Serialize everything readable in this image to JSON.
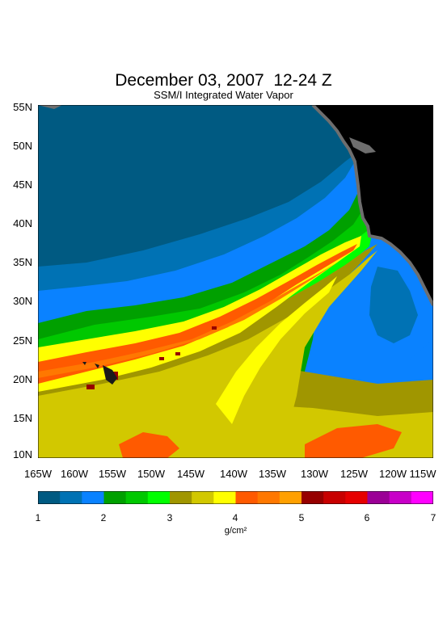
{
  "title": "December 03, 2007  12-24 Z",
  "subtitle": "SSM/I Integrated Water Vapor",
  "latitude_ticks": [
    "55N",
    "50N",
    "45N",
    "40N",
    "35N",
    "30N",
    "25N",
    "20N",
    "15N",
    "10N"
  ],
  "longitude_ticks": [
    "165W",
    "160W",
    "155W",
    "150W",
    "145W",
    "140W",
    "135W",
    "130W",
    "125W",
    "120W",
    "115W"
  ],
  "colorbar": {
    "tick_labels": [
      "1",
      "2",
      "3",
      "4",
      "5",
      "6",
      "7"
    ],
    "units": "g/cm²",
    "colors": [
      "#005a82",
      "#0072b4",
      "#0a82ff",
      "#00a000",
      "#00c800",
      "#00ff00",
      "#a09600",
      "#d2c800",
      "#ffff00",
      "#ff5a00",
      "#ff7800",
      "#ffa000",
      "#960000",
      "#c80000",
      "#e60000",
      "#9b0096",
      "#c800c8",
      "#ff00ff"
    ]
  },
  "colors": {
    "land": "#000000",
    "coastline_gray": "#6e6e6e",
    "background": "#ffffff"
  }
}
